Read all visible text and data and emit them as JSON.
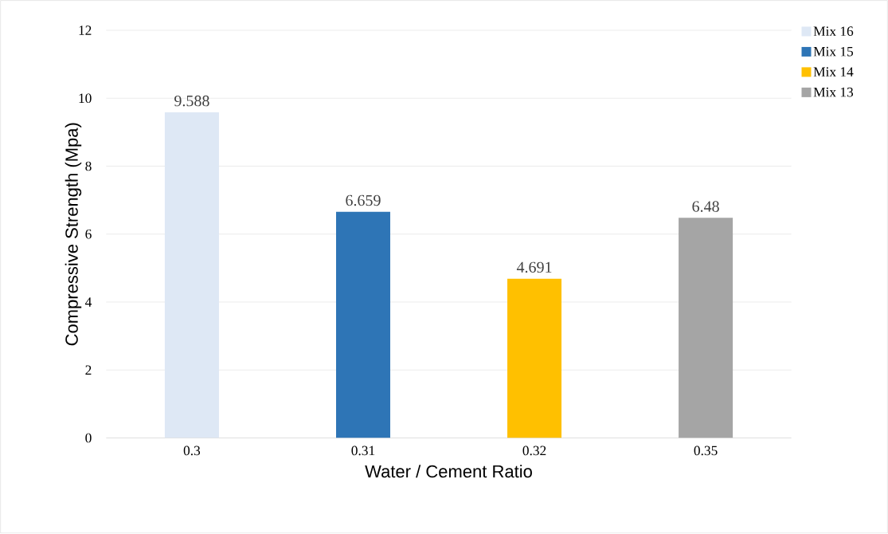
{
  "chart_data": {
    "type": "bar",
    "xlabel": "Water / Cement Ratio",
    "ylabel": "Compressive Strength (Mpa)",
    "categories": [
      "0.3",
      "0.31",
      "0.32",
      "0.35"
    ],
    "series": [
      {
        "name": "Mix 16",
        "color": "#dee8f5",
        "values": [
          9.588,
          null,
          null,
          null
        ]
      },
      {
        "name": "Mix 15",
        "color": "#2e75b6",
        "values": [
          null,
          6.659,
          null,
          null
        ]
      },
      {
        "name": "Mix 14",
        "color": "#ffc000",
        "values": [
          null,
          null,
          4.691,
          null
        ]
      },
      {
        "name": "Mix 13",
        "color": "#a5a5a5",
        "values": [
          null,
          null,
          null,
          6.48
        ]
      }
    ],
    "ylim": [
      0,
      12
    ],
    "yticks": [
      0,
      2,
      4,
      6,
      8,
      10,
      12
    ],
    "grid": "y",
    "legend": "top right",
    "data_labels": true
  }
}
